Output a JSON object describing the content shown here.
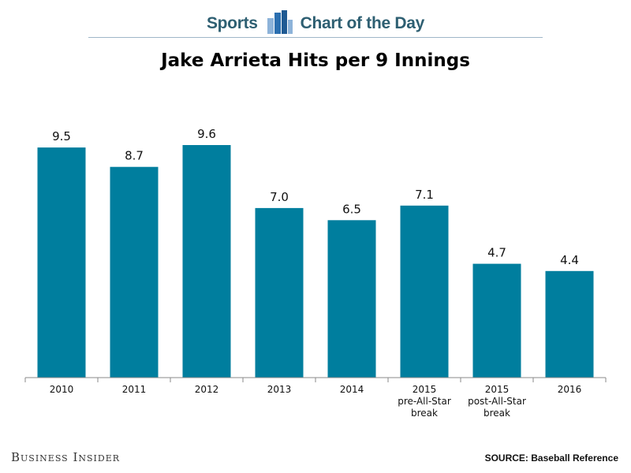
{
  "header": {
    "left_word": "Sports",
    "right_word": "Chart of the Day",
    "logo_icon": "bar-chart-logo-icon",
    "color": "#2e5f72"
  },
  "footer": {
    "publisher": "Business Insider",
    "source": "SOURCE: Baseball Reference"
  },
  "chart_data": {
    "type": "bar",
    "title": "Jake Arrieta Hits per 9 Innings",
    "xlabel": "",
    "ylabel": "",
    "categories": [
      [
        "2010"
      ],
      [
        "2011"
      ],
      [
        "2012"
      ],
      [
        "2013"
      ],
      [
        "2014"
      ],
      [
        "2015",
        "pre-All-Star",
        "break"
      ],
      [
        "2015",
        "post-All-Star",
        "break"
      ],
      [
        "2016"
      ]
    ],
    "values": [
      9.5,
      8.7,
      9.6,
      7.0,
      6.5,
      7.1,
      4.7,
      4.4
    ],
    "value_labels": [
      "9.5",
      "8.7",
      "9.6",
      "7.0",
      "6.5",
      "7.1",
      "4.7",
      "4.4"
    ],
    "ylim": [
      0,
      9.6
    ],
    "grid": false,
    "bar_color": "#007e9e"
  }
}
